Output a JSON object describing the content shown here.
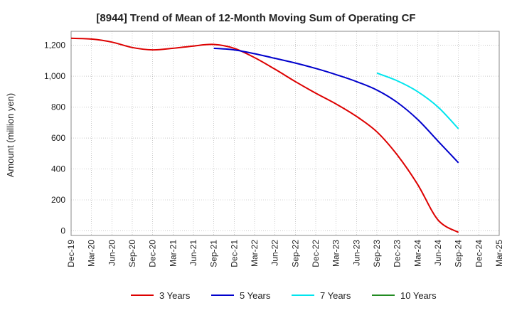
{
  "chart_data": {
    "type": "line",
    "title": "[8944]  Trend of Mean of 12-Month Moving Sum of Operating CF",
    "xlabel": "",
    "ylabel": "Amount (million yen)",
    "ylim": [
      -30,
      1290
    ],
    "y_ticks": [
      0,
      200,
      400,
      600,
      800,
      1000,
      1200
    ],
    "y_tick_labels": [
      "0",
      "200",
      "400",
      "600",
      "800",
      "1,000",
      "1,200"
    ],
    "x_tick_labels": [
      "Dec-19",
      "Mar-20",
      "Jun-20",
      "Sep-20",
      "Dec-20",
      "Mar-21",
      "Jun-21",
      "Sep-21",
      "Dec-21",
      "Mar-22",
      "Jun-22",
      "Sep-22",
      "Dec-22",
      "Mar-23",
      "Jun-23",
      "Sep-23",
      "Dec-23",
      "Mar-24",
      "Jun-24",
      "Sep-24",
      "Dec-24",
      "Mar-25"
    ],
    "grid": true,
    "series": [
      {
        "name": "3 Years",
        "color": "#dd0000",
        "x_months": [
          0,
          3,
          6,
          9,
          12,
          15,
          18,
          21,
          24,
          27,
          30,
          33,
          36,
          39,
          42,
          45,
          48,
          51,
          54,
          57
        ],
        "values": [
          1245,
          1240,
          1220,
          1185,
          1170,
          1180,
          1195,
          1205,
          1180,
          1120,
          1045,
          965,
          890,
          820,
          740,
          640,
          490,
          300,
          70,
          -10
        ]
      },
      {
        "name": "5 Years",
        "color": "#0000cc",
        "x_months": [
          21,
          24,
          27,
          30,
          33,
          36,
          39,
          42,
          45,
          48,
          51,
          54,
          57
        ],
        "values": [
          1180,
          1170,
          1145,
          1115,
          1085,
          1050,
          1010,
          965,
          910,
          830,
          720,
          580,
          440
        ]
      },
      {
        "name": "7 Years",
        "color": "#00e5ee",
        "x_months": [
          45,
          48,
          51,
          54,
          57
        ],
        "values": [
          1020,
          970,
          900,
          800,
          660
        ]
      },
      {
        "name": "10 Years",
        "color": "#228b22",
        "x_months": [],
        "values": []
      }
    ]
  }
}
